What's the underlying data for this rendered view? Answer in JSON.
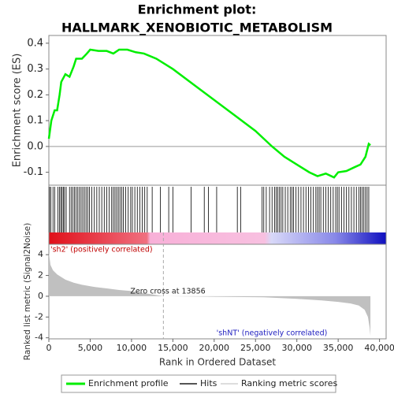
{
  "chart_data": [
    {
      "type": "line",
      "title": [
        "Enrichment plot:",
        "HALLMARK_XENOBIOTIC_METABOLISM"
      ],
      "ylabel": "Enrichment score (ES)",
      "xlim": [
        0,
        40800
      ],
      "ylim": [
        -0.15,
        0.43
      ],
      "yticks": [
        -0.1,
        {
          "value": 0,
          "label": "0.0"
        },
        0.1,
        0.2,
        0.3,
        0.4
      ],
      "x": [
        0,
        300,
        700,
        1000,
        1300,
        1500,
        2000,
        2500,
        3000,
        3300,
        4000,
        4600,
        5000,
        6000,
        7000,
        7800,
        8500,
        9500,
        10500,
        11500,
        13000,
        15000,
        17500,
        20000,
        22500,
        25000,
        27000,
        28500,
        30000,
        31500,
        32500,
        33500,
        34500,
        35000,
        36000,
        37000,
        37700,
        38300,
        38700,
        38900
      ],
      "series": [
        {
          "name": "Enrichment profile",
          "color": "#00ee00",
          "values": [
            0.03,
            0.1,
            0.14,
            0.14,
            0.2,
            0.25,
            0.28,
            0.27,
            0.31,
            0.34,
            0.34,
            0.36,
            0.375,
            0.37,
            0.37,
            0.36,
            0.375,
            0.375,
            0.365,
            0.36,
            0.34,
            0.3,
            0.24,
            0.18,
            0.12,
            0.06,
            0.0,
            -0.04,
            -0.07,
            -0.1,
            -0.115,
            -0.105,
            -0.12,
            -0.1,
            -0.095,
            -0.08,
            -0.07,
            -0.04,
            0.01,
            0.005
          ]
        }
      ]
    },
    {
      "type": "rug",
      "xlim": [
        0,
        40800
      ],
      "series": [
        {
          "name": "Hits",
          "color": "#000000",
          "values": [
            80,
            250,
            500,
            700,
            1100,
            1300,
            1450,
            1600,
            1750,
            1900,
            2100,
            2500,
            2700,
            2900,
            3100,
            3300,
            3500,
            3700,
            3900,
            4100,
            4300,
            4500,
            4700,
            4900,
            5200,
            5500,
            5800,
            6100,
            6400,
            6700,
            7000,
            7300,
            7600,
            7800,
            8000,
            8200,
            8400,
            8600,
            8800,
            9000,
            9300,
            9600,
            9900,
            10100,
            10400,
            10700,
            11000,
            11300,
            11600,
            11900,
            12500,
            13500,
            14500,
            15000,
            17200,
            18800,
            19300,
            20300,
            22800,
            23200,
            25800,
            26000,
            26300,
            26700,
            27000,
            27300,
            27500,
            27700,
            27900,
            28100,
            28300,
            28600,
            28900,
            29200,
            29400,
            29600,
            29900,
            30200,
            30500,
            30800,
            31100,
            31400,
            31700,
            32000,
            32300,
            32500,
            32700,
            32900,
            33200,
            33500,
            33800,
            34100,
            34400,
            34700,
            34900,
            35100,
            35400,
            35700,
            36000,
            36300,
            36600,
            36900,
            37200,
            37500,
            37700,
            37900,
            38100,
            38300,
            38500,
            38700
          ]
        }
      ]
    },
    {
      "type": "area",
      "ylabel": "Ranked list metric (Signal2Noise)",
      "xlabel": "Rank in Ordered Dataset",
      "xlim": [
        0,
        40800
      ],
      "ylim": [
        -4.1,
        5.0
      ],
      "yticks": [
        -4,
        -2,
        0,
        2,
        4
      ],
      "xticks": [
        0,
        {
          "value": 5000,
          "label": "5,000"
        },
        {
          "value": 10000,
          "label": "10,000"
        },
        {
          "value": 15000,
          "label": "15,000"
        },
        {
          "value": 20000,
          "label": "20,000"
        },
        {
          "value": 25000,
          "label": "25,000"
        },
        {
          "value": 30000,
          "label": "30,000"
        },
        {
          "value": 35000,
          "label": "35,000"
        },
        {
          "value": 40000,
          "label": "40,000"
        }
      ],
      "x": [
        0,
        200,
        500,
        1000,
        2000,
        3000,
        4000,
        5500,
        7000,
        8500,
        10000,
        13856,
        20000,
        26000,
        30000,
        33000,
        35000,
        36500,
        37500,
        38200,
        38600,
        38800,
        38900
      ],
      "series": [
        {
          "name": "Ranking metric scores",
          "color": "#c0c0c0",
          "values": [
            4.2,
            3.0,
            2.5,
            2.1,
            1.6,
            1.3,
            1.1,
            0.9,
            0.75,
            0.6,
            0.5,
            0,
            -0.05,
            -0.1,
            -0.25,
            -0.4,
            -0.55,
            -0.7,
            -0.9,
            -1.3,
            -2.0,
            -3.0,
            -3.8
          ]
        }
      ],
      "annotations": [
        "'sh2' (positively correlated)",
        {
          "value": 13856,
          "label": "Zero cross at 13856"
        },
        "'shNT' (negatively correlated)"
      ]
    }
  ]
}
